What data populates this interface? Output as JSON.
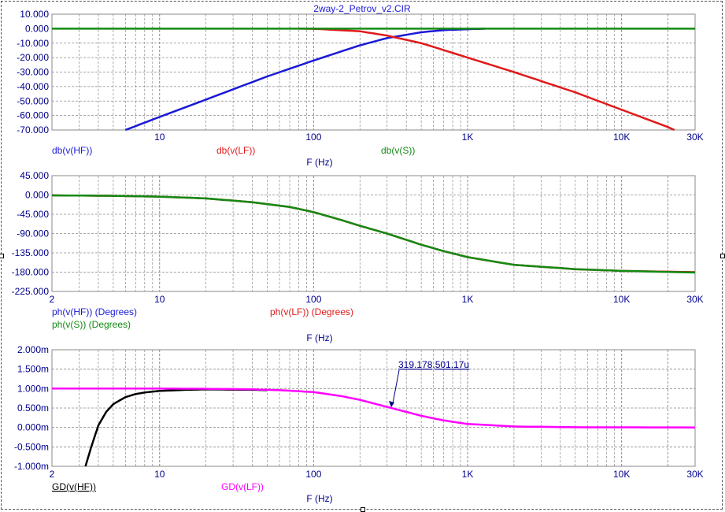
{
  "window": {
    "title": "2way-2_Petrov_v2.CIR"
  },
  "colors": {
    "hf": "#1a1ad6",
    "lf": "#e01a1a",
    "s": "#138a13",
    "gd_hf": "#000000",
    "gd_lf": "#ff00ff",
    "grid": "#8a8a8a",
    "axis_text": "#00008b"
  },
  "chart_data": [
    {
      "type": "line",
      "title": "2way-2_Petrov_v2.CIR",
      "xlabel": "F (Hz)",
      "x_scale": "log",
      "xlim": [
        2,
        30000
      ],
      "x_tick_labels": [
        "10",
        "100",
        "1K",
        "10K",
        "30K"
      ],
      "ylim": [
        -70,
        10
      ],
      "y_tick_labels": [
        "10.000",
        "0.000",
        "-10.000",
        "-20.000",
        "-30.000",
        "-40.000",
        "-50.000",
        "-60.000",
        "-70.000"
      ],
      "legend": [
        "db(v(HF))",
        "db(v(LF))",
        "db(v(S))"
      ],
      "grid": true,
      "series": [
        {
          "name": "db(v(HF))",
          "color": "#1a1ad6",
          "points": [
            [
              6,
              -70
            ],
            [
              10,
              -61
            ],
            [
              20,
              -49
            ],
            [
              50,
              -33
            ],
            [
              100,
              -22
            ],
            [
              200,
              -11.5
            ],
            [
              300,
              -6.5
            ],
            [
              500,
              -2.5
            ],
            [
              700,
              -1
            ],
            [
              1000,
              -0.4
            ],
            [
              1300,
              0
            ]
          ]
        },
        {
          "name": "db(v(LF))",
          "color": "#e01a1a",
          "points": [
            [
              80,
              0
            ],
            [
              100,
              -0.1
            ],
            [
              200,
              -1.8
            ],
            [
              300,
              -4.8
            ],
            [
              500,
              -10
            ],
            [
              1000,
              -20
            ],
            [
              2000,
              -30
            ],
            [
              5000,
              -44
            ],
            [
              10000,
              -56
            ],
            [
              20000,
              -68
            ],
            [
              22000,
              -70
            ]
          ]
        },
        {
          "name": "db(v(S))",
          "color": "#138a13",
          "points": [
            [
              2,
              0
            ],
            [
              30000,
              0
            ]
          ]
        }
      ]
    },
    {
      "type": "line",
      "xlabel": "F (Hz)",
      "x_scale": "log",
      "xlim": [
        2,
        30000
      ],
      "x_tick_labels": [
        "2",
        "10",
        "100",
        "1K",
        "10K",
        "30K"
      ],
      "ylim": [
        -225,
        45
      ],
      "y_tick_labels": [
        "45.000",
        "0.000",
        "-45.000",
        "-90.000",
        "-135.000",
        "-180.000",
        "-225.000"
      ],
      "legend": [
        "ph(v(HF)) (Degrees)",
        "ph(v(LF)) (Degrees)",
        "ph(v(S)) (Degrees)"
      ],
      "grid": true,
      "series": [
        {
          "name": "ph(v(LF)) (Degrees)",
          "color": "#e01a1a",
          "points": [
            [
              2,
              -1
            ],
            [
              5,
              -2
            ],
            [
              10,
              -4
            ],
            [
              20,
              -8
            ],
            [
              40,
              -17
            ],
            [
              70,
              -28
            ],
            [
              100,
              -40
            ],
            [
              150,
              -58
            ],
            [
              200,
              -72
            ],
            [
              300,
              -90
            ],
            [
              500,
              -116
            ],
            [
              700,
              -131
            ],
            [
              1000,
              -145
            ],
            [
              2000,
              -163
            ],
            [
              5000,
              -173
            ],
            [
              10000,
              -177
            ],
            [
              30000,
              -180
            ]
          ]
        },
        {
          "name": "ph(v(S)) (Degrees)",
          "color": "#138a13",
          "points": [
            [
              2,
              -1
            ],
            [
              5,
              -2
            ],
            [
              10,
              -4
            ],
            [
              20,
              -8
            ],
            [
              40,
              -17
            ],
            [
              70,
              -28
            ],
            [
              100,
              -40
            ],
            [
              150,
              -58
            ],
            [
              200,
              -72
            ],
            [
              300,
              -90
            ],
            [
              500,
              -116
            ],
            [
              700,
              -131
            ],
            [
              1000,
              -145
            ],
            [
              2000,
              -163
            ],
            [
              5000,
              -173
            ],
            [
              10000,
              -177
            ],
            [
              30000,
              -181
            ]
          ]
        }
      ]
    },
    {
      "type": "line",
      "xlabel": "F (Hz)",
      "x_scale": "log",
      "xlim": [
        2,
        30000
      ],
      "x_tick_labels": [
        "2",
        "10",
        "100",
        "1K",
        "10K",
        "30K"
      ],
      "ylim": [
        -1.0,
        2.0
      ],
      "y_tick_labels": [
        "2.000m",
        "1.500m",
        "1.000m",
        "0.500m",
        "0.000m",
        "-0.500m",
        "-1.000m"
      ],
      "legend": [
        "GD(v(HF))",
        "GD(v(LF))"
      ],
      "grid": true,
      "annotation": {
        "text": "319.178,501.17u",
        "x": 319.178,
        "y": 0.50117
      },
      "series": [
        {
          "name": "GD(v(HF))",
          "color": "#000000",
          "points": [
            [
              3.3,
              -1.0
            ],
            [
              3.6,
              -0.5
            ],
            [
              4,
              0.05
            ],
            [
              4.5,
              0.4
            ],
            [
              5,
              0.6
            ],
            [
              6,
              0.78
            ],
            [
              7,
              0.86
            ],
            [
              8,
              0.9
            ],
            [
              10,
              0.94
            ],
            [
              15,
              0.97
            ],
            [
              20,
              0.98
            ],
            [
              40,
              0.97
            ],
            [
              50,
              0.96
            ]
          ]
        },
        {
          "name": "GD(v(LF))",
          "color": "#ff00ff",
          "points": [
            [
              2,
              1.0
            ],
            [
              10,
              1.0
            ],
            [
              20,
              0.995
            ],
            [
              40,
              0.98
            ],
            [
              60,
              0.96
            ],
            [
              100,
              0.91
            ],
            [
              150,
              0.81
            ],
            [
              200,
              0.71
            ],
            [
              319.178,
              0.50117
            ],
            [
              500,
              0.3
            ],
            [
              700,
              0.18
            ],
            [
              1000,
              0.09
            ],
            [
              2000,
              0.025
            ],
            [
              5000,
              0.005
            ],
            [
              30000,
              0
            ]
          ]
        }
      ]
    }
  ]
}
